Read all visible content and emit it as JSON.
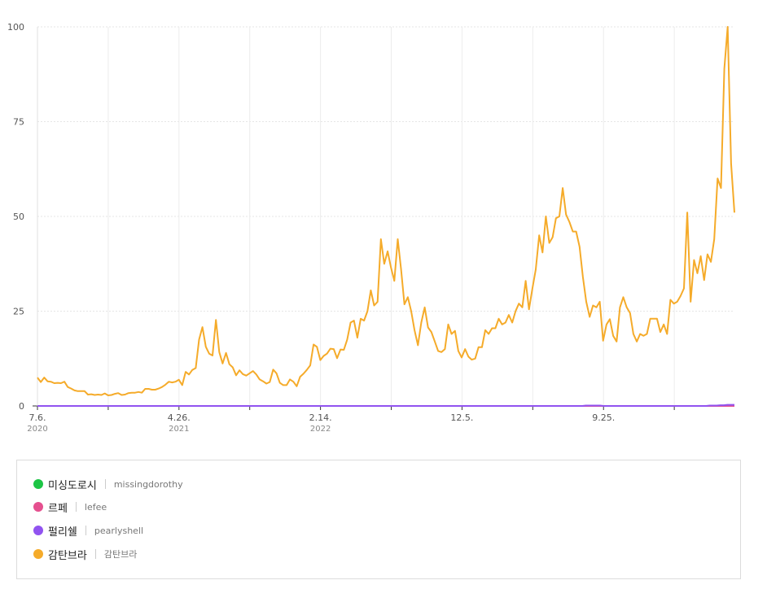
{
  "chart_data": {
    "type": "line",
    "ylim": [
      0,
      100
    ],
    "y_ticks": [
      "0",
      "25",
      "50",
      "75",
      "100"
    ],
    "x_ticks": [
      {
        "label": "7.6.",
        "sub": "2020"
      },
      {
        "label": "4.26.",
        "sub": "2021"
      },
      {
        "label": "2.14.",
        "sub": "2022"
      },
      {
        "label": "12.5.",
        "sub": ""
      },
      {
        "label": "9.25.",
        "sub": ""
      }
    ],
    "grid": true,
    "series": [
      {
        "name": "미싱도로시",
        "id": "missingdorothy",
        "color": "#1dc545",
        "values": [
          0,
          0,
          0,
          0,
          0,
          0,
          0,
          0,
          0,
          0,
          0,
          0,
          0,
          0,
          0,
          0,
          0,
          0,
          0,
          0,
          0,
          0,
          0,
          0,
          0,
          0,
          0,
          0,
          0,
          0,
          0,
          0,
          0,
          0,
          0,
          0,
          0,
          0,
          0,
          0,
          0,
          0,
          0,
          0,
          0,
          0,
          0,
          0,
          0,
          0,
          0,
          0,
          0,
          0,
          0,
          0,
          0,
          0,
          0,
          0,
          0,
          0,
          0,
          0,
          0,
          0,
          0,
          0,
          0,
          0,
          0,
          0,
          0,
          0,
          0,
          0,
          0,
          0,
          0,
          0,
          0,
          0,
          0,
          0,
          0,
          0,
          0,
          0,
          0,
          0,
          0,
          0,
          0,
          0,
          0,
          0,
          0,
          0,
          0,
          0,
          0,
          0,
          0,
          0,
          0,
          0,
          0,
          0,
          0,
          0,
          0,
          0,
          0,
          0,
          0,
          0,
          0,
          0,
          0,
          0,
          0,
          0,
          0,
          0,
          0,
          0,
          0,
          0,
          0,
          0,
          0,
          0,
          0,
          0,
          0,
          0,
          0,
          0,
          0,
          0,
          0,
          0,
          0,
          0,
          0,
          0,
          0,
          0,
          0,
          0,
          0,
          0,
          0,
          0,
          0,
          0,
          0,
          0,
          0,
          0,
          0,
          0,
          0,
          0,
          0,
          0,
          0,
          0,
          0,
          0,
          0,
          0,
          0,
          0,
          0,
          0,
          0,
          0,
          0,
          0,
          0,
          0,
          0,
          0,
          0,
          0,
          0,
          0,
          0,
          0,
          0,
          0,
          0,
          0,
          0,
          0,
          0,
          0,
          0,
          0,
          0
        ]
      },
      {
        "name": "르페",
        "id": "lefee",
        "color": "#e5508f",
        "values": [
          0,
          0,
          0,
          0,
          0,
          0,
          0,
          0,
          0,
          0,
          0,
          0,
          0,
          0,
          0,
          0,
          0,
          0,
          0,
          0,
          0,
          0,
          0,
          0,
          0,
          0,
          0,
          0,
          0,
          0,
          0,
          0,
          0,
          0,
          0,
          0,
          0,
          0,
          0,
          0,
          0,
          0,
          0,
          0,
          0,
          0,
          0,
          0,
          0,
          0,
          0,
          0,
          0,
          0,
          0,
          0,
          0,
          0,
          0,
          0,
          0,
          0,
          0,
          0,
          0,
          0,
          0,
          0,
          0,
          0,
          0,
          0,
          0,
          0,
          0,
          0,
          0,
          0,
          0,
          0,
          0,
          0,
          0,
          0,
          0,
          0,
          0,
          0,
          0,
          0,
          0,
          0,
          0,
          0,
          0,
          0,
          0,
          0,
          0,
          0,
          0,
          0,
          0,
          0,
          0,
          0,
          0,
          0,
          0,
          0,
          0,
          0,
          0,
          0,
          0,
          0,
          0,
          0,
          0,
          0,
          0,
          0,
          0,
          0,
          0,
          0,
          0,
          0,
          0,
          0,
          0,
          0,
          0,
          0,
          0,
          0,
          0,
          0,
          0,
          0,
          0,
          0,
          0,
          0,
          0,
          0,
          0,
          0,
          0,
          0,
          0,
          0,
          0,
          0,
          0,
          0,
          0,
          0,
          0,
          0,
          0,
          0,
          0,
          0,
          0,
          0,
          0,
          0,
          0,
          0,
          0,
          0,
          0,
          0,
          0,
          0,
          0,
          0,
          0,
          0,
          0,
          0,
          0,
          0,
          0,
          0,
          0,
          0,
          0,
          0,
          0,
          0,
          0,
          0,
          0,
          0,
          0,
          0,
          0,
          0,
          0
        ]
      },
      {
        "name": "펄리쉘",
        "id": "pearlyshell",
        "color": "#9153f0",
        "values": [
          0,
          0,
          0,
          0,
          0,
          0,
          0,
          0,
          0,
          0,
          0,
          0,
          0,
          0,
          0,
          0,
          0,
          0,
          0,
          0,
          0,
          0,
          0,
          0,
          0,
          0,
          0,
          0,
          0,
          0,
          0,
          0,
          0,
          0,
          0,
          0,
          0,
          0,
          0,
          0,
          0,
          0,
          0,
          0,
          0,
          0,
          0,
          0,
          0,
          0,
          0,
          0,
          0,
          0,
          0,
          0,
          0,
          0,
          0,
          0,
          0,
          0,
          0,
          0,
          0,
          0,
          0,
          0,
          0,
          0,
          0,
          0,
          0,
          0,
          0,
          0,
          0,
          0,
          0,
          0,
          0,
          0,
          0,
          0,
          0,
          0,
          0,
          0,
          0,
          0,
          0,
          0,
          0,
          0,
          0,
          0,
          0,
          0,
          0,
          0,
          0,
          0,
          0,
          0,
          0,
          0,
          0,
          0,
          0,
          0,
          0,
          0,
          0,
          0,
          0,
          0,
          0,
          0,
          0,
          0,
          0,
          0,
          0,
          0,
          0,
          0,
          0,
          0,
          0,
          0,
          0,
          0,
          0,
          0,
          0,
          0,
          0,
          0,
          0,
          0,
          0,
          0,
          0,
          0,
          0,
          0,
          0,
          0,
          0,
          0,
          0,
          0,
          0,
          0,
          0,
          0.1,
          0.1,
          0.1,
          0.1,
          0.1,
          0,
          0,
          0,
          0,
          0,
          0,
          0,
          0,
          0,
          0,
          0,
          0,
          0,
          0,
          0,
          0,
          0,
          0,
          0,
          0,
          0,
          0,
          0,
          0,
          0,
          0,
          0,
          0,
          0,
          0,
          0.1,
          0.1,
          0.1,
          0.2,
          0.2,
          0.3,
          0.3,
          0.3
        ]
      },
      {
        "name": "감탄브라",
        "id": "감탄브라",
        "color": "#f5ab2a",
        "values": [
          7.5,
          6.3,
          7.5,
          6.5,
          6.4,
          6.0,
          6.1,
          6.0,
          6.4,
          5.0,
          4.6,
          4.1,
          3.9,
          3.9,
          3.9,
          3.0,
          3.1,
          2.9,
          3.0,
          2.9,
          3.3,
          2.8,
          2.9,
          3.2,
          3.4,
          2.9,
          3.0,
          3.4,
          3.5,
          3.5,
          3.7,
          3.5,
          4.5,
          4.5,
          4.3,
          4.3,
          4.6,
          5.0,
          5.6,
          6.4,
          6.2,
          6.4,
          6.9,
          5.5,
          9.0,
          8.3,
          9.5,
          10.0,
          17.5,
          20.8,
          15.6,
          13.8,
          13.3,
          22.7,
          14.2,
          11.2,
          14.0,
          11.0,
          10.2,
          8.1,
          9.4,
          8.4,
          8.0,
          8.6,
          9.2,
          8.3,
          7.0,
          6.5,
          5.9,
          6.3,
          9.6,
          8.6,
          6.1,
          5.5,
          5.5,
          7.0,
          6.4,
          5.2,
          7.7,
          8.5,
          9.5,
          10.7,
          16.2,
          15.6,
          12.1,
          13.2,
          13.8,
          15.1,
          15.0,
          12.6,
          14.9,
          14.8,
          17.5,
          22.0,
          22.5,
          18.0,
          23.0,
          22.5,
          25.0,
          30.5,
          26.5,
          27.5,
          44.0,
          37.5,
          40.8,
          36.5,
          33.0,
          44.0,
          36.0,
          26.8,
          28.7,
          25.0,
          20.0,
          16.0,
          22.0,
          26.0,
          20.7,
          19.5,
          17.0,
          14.5,
          14.2,
          15.0,
          21.5,
          19.0,
          19.8,
          14.5,
          12.8,
          15.0,
          13.0,
          12.2,
          12.5,
          15.5,
          15.5,
          20.0,
          19.0,
          20.5,
          20.5,
          23.0,
          21.5,
          22.0,
          24.0,
          22.0,
          25.0,
          27.0,
          26.0,
          33.0,
          25.5,
          31.0,
          36.0,
          45.0,
          40.5,
          50.0,
          43.0,
          44.5,
          49.5,
          50.0,
          57.5,
          50.5,
          48.5,
          46.0,
          46.0,
          42.0,
          34.0,
          27.5,
          23.5,
          26.5,
          26.0,
          27.5,
          17.2,
          21.5,
          22.9,
          18.5,
          17.0,
          26.0,
          28.7,
          26.0,
          24.5,
          19.0,
          17.0,
          19.0,
          18.5,
          19.0,
          23.0,
          23.0,
          23.0,
          19.5,
          21.5,
          19.0,
          28.0,
          27.0,
          27.5,
          29.0,
          31.0,
          51.0,
          27.5,
          38.5,
          35.0,
          39.5,
          33.2,
          40.0,
          38.0,
          44.0,
          60.0,
          57.5,
          89.0,
          100.0,
          64.0,
          51.0
        ]
      }
    ]
  }
}
